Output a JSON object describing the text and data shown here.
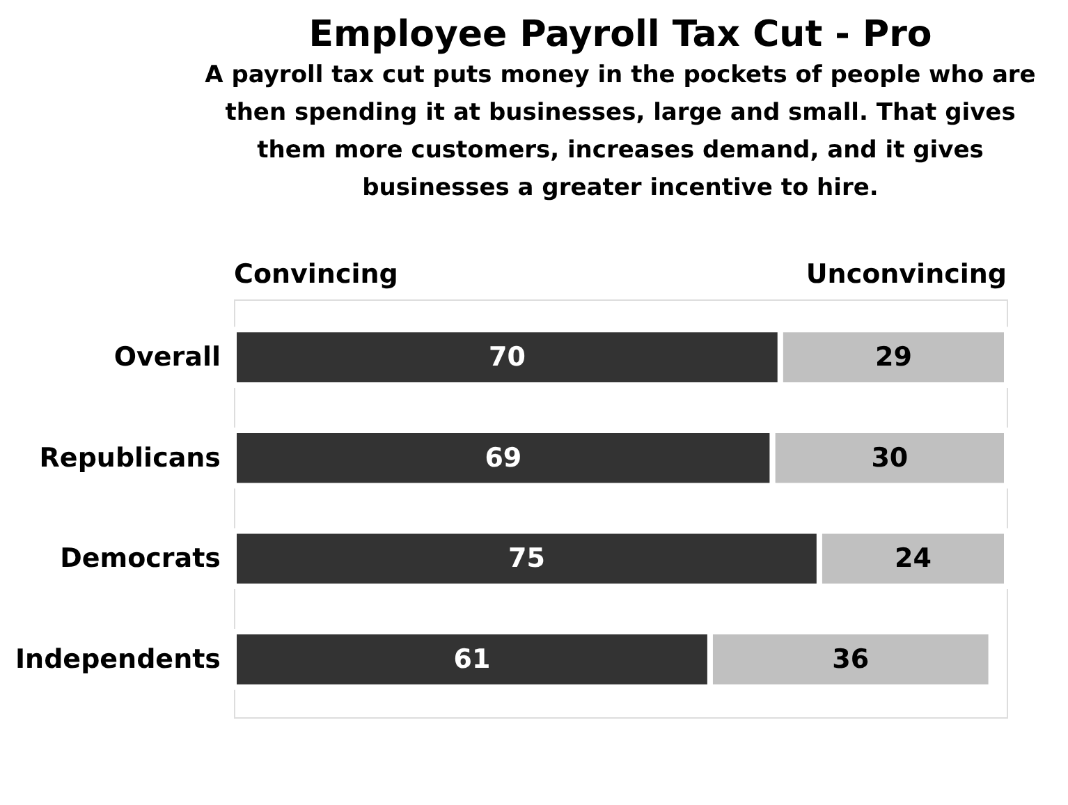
{
  "chart_data": {
    "type": "bar",
    "orientation": "horizontal",
    "stacked": true,
    "data_labels": true,
    "legend": "top",
    "title": "Employee Payroll Tax Cut - Pro",
    "subtitle": "A payroll tax cut puts money in the pockets of people who are then spending it at businesses, large and small.  That gives them more customers, increases demand, and it gives businesses a greater incentive to hire.",
    "categories": [
      "Overall",
      "Republicans",
      "Democrats",
      "Independents"
    ],
    "series": [
      {
        "name": "Convincing",
        "color": "#333333",
        "values": [
          70,
          69,
          75,
          61
        ]
      },
      {
        "name": "Unconvincing",
        "color": "#c0c0c0",
        "values": [
          29,
          30,
          24,
          36
        ]
      }
    ]
  }
}
